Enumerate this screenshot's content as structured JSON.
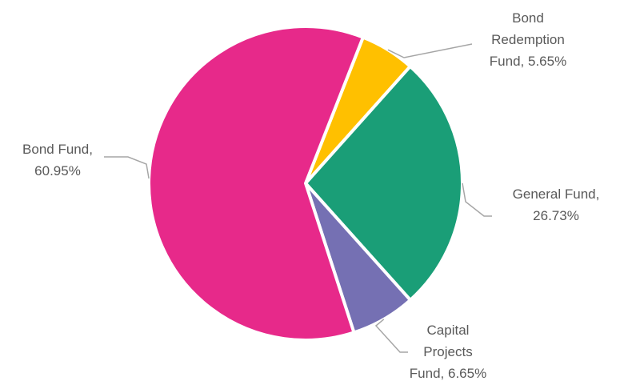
{
  "chart_data": {
    "type": "pie",
    "slices": [
      {
        "label": "Bond Redemption Fund",
        "value": 5.65,
        "display": "5.65%",
        "color": "#FFC000"
      },
      {
        "label": "General Fund",
        "value": 26.73,
        "display": "26.73%",
        "color": "#1A9E77"
      },
      {
        "label": "Capital Projects Fund",
        "value": 6.65,
        "display": "6.65%",
        "color": "#7570B3"
      },
      {
        "label": "Bond Fund",
        "value": 60.95,
        "display": "60.95%",
        "color": "#E7298A"
      }
    ],
    "labels_text": [
      [
        "Bond",
        "Redemption",
        "Fund, 5.65%"
      ],
      [
        "General Fund,",
        "26.73%"
      ],
      [
        "Capital",
        "Projects",
        "Fund, 6.65%"
      ],
      [
        "Bond Fund,",
        "60.95%"
      ]
    ],
    "start_angle_deg": 21.5,
    "direction": "clockwise",
    "legend": "none",
    "data_labels": "outside-with-leader-lines"
  }
}
